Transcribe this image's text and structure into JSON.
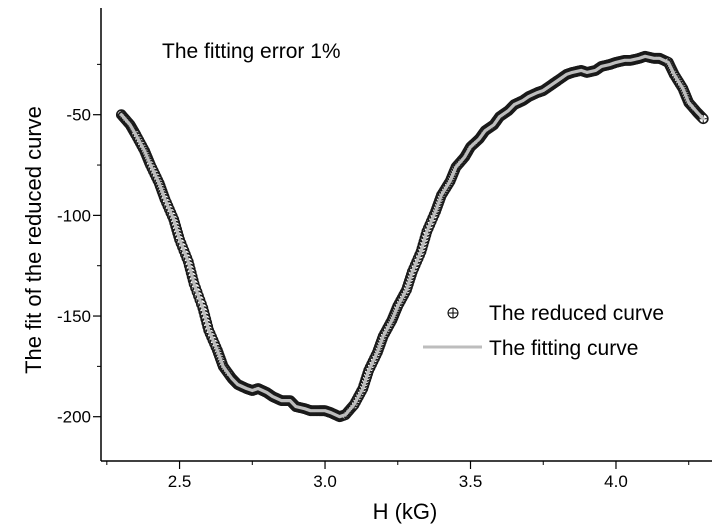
{
  "chart_data": {
    "type": "scatter",
    "title": "",
    "annotation": "The fitting error 1%",
    "xlabel": "H (kG)",
    "ylabel": "The fit of the reduced curve",
    "xlim": [
      2.23,
      4.33
    ],
    "ylim": [
      -222,
      3
    ],
    "xticks": [
      2.5,
      3.0,
      3.5,
      4.0
    ],
    "xtick_labels": [
      "2.5",
      "3.0",
      "3.5",
      "4.0"
    ],
    "yticks": [
      -50,
      -100,
      -150,
      -200
    ],
    "ytick_labels": [
      "-50",
      "-100",
      "-150",
      "-200"
    ],
    "grid": false,
    "legend_position": "right",
    "colors": {
      "markers": "#1a1a1a",
      "fit_line": "#bdbdbd",
      "axes": "#000000"
    },
    "series": [
      {
        "name": "The reduced curve",
        "kind": "markers",
        "marker": "circle-plus",
        "x": [
          2.3,
          2.33,
          2.35,
          2.38,
          2.4,
          2.43,
          2.45,
          2.48,
          2.5,
          2.53,
          2.55,
          2.58,
          2.6,
          2.63,
          2.65,
          2.68,
          2.7,
          2.73,
          2.75,
          2.77,
          2.8,
          2.82,
          2.85,
          2.88,
          2.9,
          2.93,
          2.95,
          2.98,
          3.0,
          3.02,
          3.05,
          3.07,
          3.1,
          3.13,
          3.15,
          3.18,
          3.2,
          3.23,
          3.25,
          3.28,
          3.3,
          3.33,
          3.35,
          3.38,
          3.4,
          3.43,
          3.45,
          3.48,
          3.5,
          3.53,
          3.55,
          3.58,
          3.6,
          3.63,
          3.65,
          3.68,
          3.7,
          3.73,
          3.75,
          3.78,
          3.8,
          3.83,
          3.85,
          3.88,
          3.9,
          3.93,
          3.95,
          3.98,
          4.0,
          4.03,
          4.05,
          4.08,
          4.1,
          4.13,
          4.15,
          4.18,
          4.2,
          4.23,
          4.25,
          4.28,
          4.3
        ],
        "y": [
          -50,
          -55,
          -60,
          -68,
          -75,
          -84,
          -92,
          -102,
          -112,
          -123,
          -134,
          -146,
          -157,
          -167,
          -175,
          -181,
          -184,
          -186,
          -187,
          -186,
          -188,
          -190,
          -192,
          -192,
          -195,
          -196,
          -197,
          -197,
          -197,
          -198,
          -200,
          -199,
          -194,
          -186,
          -177,
          -168,
          -160,
          -152,
          -145,
          -137,
          -128,
          -118,
          -108,
          -98,
          -90,
          -83,
          -76,
          -71,
          -66,
          -62,
          -58,
          -55,
          -51,
          -48,
          -45,
          -43,
          -41,
          -39,
          -38,
          -35,
          -33,
          -30,
          -29,
          -28,
          -29,
          -28,
          -26,
          -25,
          -24,
          -23,
          -23,
          -22,
          -21,
          -22,
          -22,
          -24,
          -30,
          -37,
          -44,
          -49,
          -52
        ]
      },
      {
        "name": "The fitting curve",
        "kind": "line",
        "x": [
          2.3,
          2.33,
          2.35,
          2.38,
          2.4,
          2.43,
          2.45,
          2.48,
          2.5,
          2.53,
          2.55,
          2.58,
          2.6,
          2.63,
          2.65,
          2.68,
          2.7,
          2.73,
          2.75,
          2.77,
          2.8,
          2.82,
          2.85,
          2.88,
          2.9,
          2.93,
          2.95,
          2.98,
          3.0,
          3.02,
          3.05,
          3.07,
          3.1,
          3.13,
          3.15,
          3.18,
          3.2,
          3.23,
          3.25,
          3.28,
          3.3,
          3.33,
          3.35,
          3.38,
          3.4,
          3.43,
          3.45,
          3.48,
          3.5,
          3.53,
          3.55,
          3.58,
          3.6,
          3.63,
          3.65,
          3.68,
          3.7,
          3.73,
          3.75,
          3.78,
          3.8,
          3.83,
          3.85,
          3.88,
          3.9,
          3.93,
          3.95,
          3.98,
          4.0,
          4.03,
          4.05,
          4.08,
          4.1,
          4.13,
          4.15,
          4.18,
          4.2,
          4.23,
          4.25,
          4.28,
          4.3
        ],
        "y": [
          -50,
          -55,
          -60,
          -68,
          -75,
          -84,
          -92,
          -102,
          -112,
          -123,
          -134,
          -146,
          -157,
          -167,
          -175,
          -181,
          -184,
          -186,
          -187,
          -186,
          -188,
          -190,
          -192,
          -192,
          -195,
          -196,
          -197,
          -197,
          -197,
          -198,
          -200,
          -199,
          -194,
          -186,
          -177,
          -168,
          -160,
          -152,
          -145,
          -137,
          -128,
          -118,
          -108,
          -98,
          -90,
          -83,
          -76,
          -71,
          -66,
          -62,
          -58,
          -55,
          -51,
          -48,
          -45,
          -43,
          -41,
          -39,
          -38,
          -35,
          -33,
          -30,
          -29,
          -28,
          -29,
          -28,
          -26,
          -25,
          -24,
          -23,
          -23,
          -22,
          -21,
          -22,
          -22,
          -24,
          -30,
          -37,
          -44,
          -49,
          -52
        ]
      }
    ]
  }
}
